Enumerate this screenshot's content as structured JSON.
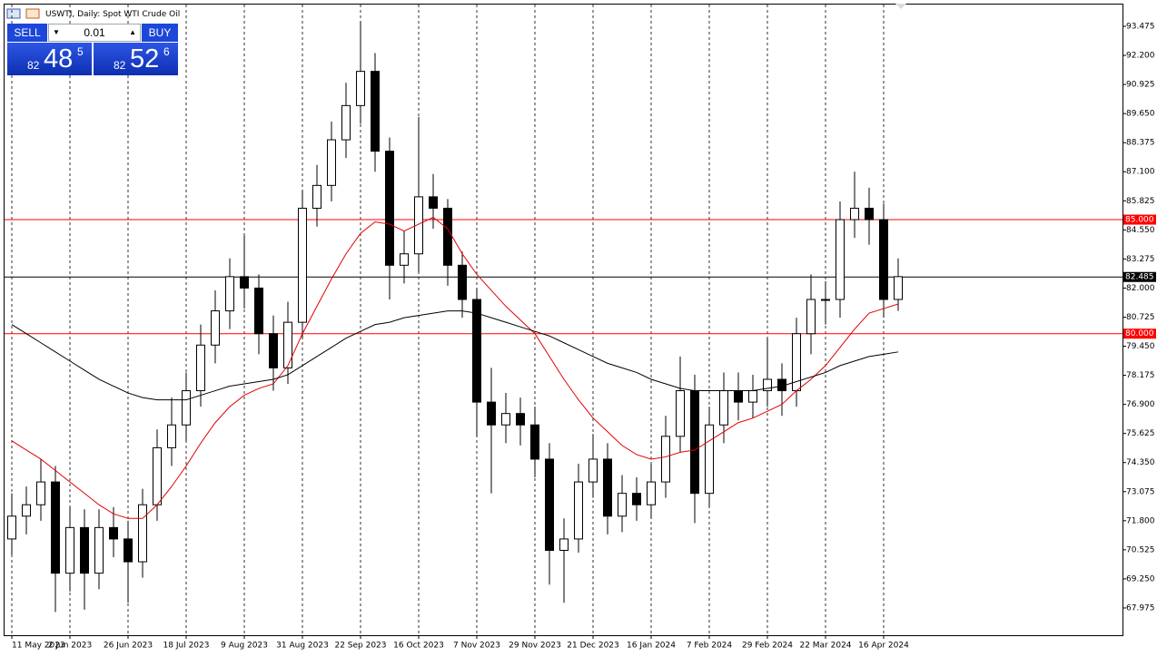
{
  "chart_data": {
    "type": "candlestick",
    "title": "USWTI, Daily:  Spot WTI Crude Oil",
    "categories": [
      "11 May 2023",
      null,
      null,
      null,
      "2 Jun 2023",
      null,
      null,
      null,
      "26 Jun 2023",
      null,
      null,
      null,
      "18 Jul 2023",
      null,
      null,
      null,
      "9 Aug 2023",
      null,
      null,
      null,
      "31 Aug 2023",
      null,
      null,
      null,
      "22 Sep 2023",
      null,
      null,
      null,
      "16 Oct 2023",
      null,
      null,
      null,
      "7 Nov 2023",
      null,
      null,
      null,
      "29 Nov 2023",
      null,
      null,
      null,
      "21 Dec 2023",
      null,
      null,
      null,
      "16 Jan 2024",
      null,
      null,
      null,
      "7 Feb 2024",
      null,
      null,
      null,
      "29 Feb 2024",
      null,
      null,
      null,
      "22 Mar 2024",
      null,
      null,
      null,
      "16 Apr 2024",
      null
    ],
    "open": [
      71.0,
      72.0,
      72.5,
      73.5,
      69.5,
      71.5,
      69.5,
      71.5,
      71.0,
      70.0,
      72.5,
      75.0,
      76.0,
      77.5,
      79.5,
      81.0,
      82.5,
      82.0,
      80.0,
      78.5,
      80.5,
      85.5,
      86.5,
      88.5,
      90.0,
      91.5,
      88.0,
      83.0,
      83.5,
      86.0,
      85.5,
      83.0,
      81.5,
      77.0,
      76.0,
      76.5,
      76.0,
      74.5,
      70.5,
      71.0,
      73.5,
      74.5,
      72.0,
      73.0,
      72.5,
      73.5,
      75.5,
      77.5,
      73.0,
      76.0,
      77.5,
      77.0,
      77.5,
      78.0,
      77.5,
      80.0,
      81.5,
      81.5,
      85.0,
      85.5,
      85.0,
      81.5
    ],
    "high": [
      73.0,
      73.3,
      74.5,
      74.2,
      72.4,
      72.3,
      72.3,
      72.4,
      71.8,
      73.2,
      75.8,
      77.2,
      78.3,
      80.4,
      81.9,
      83.3,
      84.3,
      82.6,
      80.8,
      81.4,
      86.3,
      87.4,
      89.3,
      91.0,
      93.7,
      92.3,
      88.6,
      84.5,
      89.5,
      87.0,
      85.9,
      83.6,
      82.0,
      78.5,
      77.4,
      77.2,
      76.8,
      75.2,
      71.9,
      74.3,
      75.6,
      75.2,
      73.8,
      73.7,
      74.3,
      76.4,
      79.0,
      78.2,
      76.8,
      78.3,
      78.3,
      78.2,
      79.8,
      78.7,
      80.7,
      82.6,
      82.3,
      85.8,
      87.1,
      86.4,
      85.7,
      83.3
    ],
    "low": [
      70.3,
      71.2,
      71.8,
      67.8,
      68.7,
      67.9,
      68.8,
      70.2,
      68.2,
      69.3,
      71.8,
      74.2,
      75.3,
      76.8,
      78.7,
      80.2,
      81.1,
      79.1,
      77.5,
      77.8,
      79.8,
      84.7,
      85.8,
      87.7,
      89.2,
      87.1,
      81.5,
      82.2,
      82.7,
      84.6,
      82.1,
      80.7,
      75.5,
      73.0,
      75.2,
      75.1,
      73.7,
      69.0,
      68.2,
      70.4,
      72.8,
      71.2,
      71.3,
      71.8,
      71.9,
      72.8,
      74.8,
      71.7,
      72.4,
      75.2,
      76.2,
      76.3,
      76.8,
      76.4,
      76.8,
      79.1,
      80.4,
      80.7,
      84.2,
      83.9,
      80.7,
      81.0
    ],
    "close": [
      72.0,
      72.5,
      73.5,
      69.5,
      71.5,
      69.5,
      71.5,
      71.0,
      70.0,
      72.5,
      75.0,
      76.0,
      77.5,
      79.5,
      81.0,
      82.5,
      82.0,
      80.0,
      78.5,
      80.5,
      85.5,
      86.5,
      88.5,
      90.0,
      91.5,
      88.0,
      83.0,
      83.5,
      86.0,
      85.5,
      83.0,
      81.5,
      77.0,
      76.0,
      76.5,
      76.0,
      74.5,
      70.5,
      71.0,
      73.5,
      74.5,
      72.0,
      73.0,
      72.5,
      73.5,
      75.5,
      77.5,
      73.0,
      76.0,
      77.5,
      77.0,
      77.5,
      78.0,
      77.5,
      80.0,
      81.5,
      81.5,
      85.0,
      85.5,
      85.0,
      81.5,
      82.5
    ],
    "up_color": "#ffffff",
    "down_color": "#000000",
    "outline_color": "#000000",
    "lines": [
      {
        "color": "#e00000",
        "values": [
          75.3,
          74.9,
          74.5,
          74.0,
          73.5,
          73.0,
          72.5,
          72.1,
          71.9,
          71.9,
          72.5,
          73.3,
          74.2,
          75.2,
          76.1,
          76.8,
          77.3,
          77.6,
          77.8,
          78.6,
          80.0,
          81.2,
          82.4,
          83.5,
          84.4,
          84.9,
          84.8,
          84.5,
          84.8,
          85.1,
          84.6,
          83.5,
          82.6,
          81.9,
          81.2,
          80.6,
          80.0,
          79.0,
          78.0,
          77.1,
          76.3,
          75.7,
          75.1,
          74.7,
          74.5,
          74.6,
          74.8,
          74.9,
          75.3,
          75.7,
          76.1,
          76.3,
          76.6,
          76.9,
          77.5,
          78.0,
          78.6,
          79.4,
          80.2,
          80.9,
          81.1,
          81.3
        ]
      },
      {
        "color": "#000000",
        "values": [
          80.4,
          80.0,
          79.6,
          79.2,
          78.8,
          78.4,
          78.0,
          77.7,
          77.4,
          77.2,
          77.1,
          77.1,
          77.1,
          77.3,
          77.5,
          77.7,
          77.8,
          77.9,
          78.0,
          78.2,
          78.6,
          79.0,
          79.4,
          79.8,
          80.1,
          80.4,
          80.5,
          80.7,
          80.8,
          80.9,
          81.0,
          81.0,
          80.9,
          80.7,
          80.5,
          80.3,
          80.1,
          79.9,
          79.6,
          79.3,
          79.0,
          78.7,
          78.5,
          78.3,
          78.0,
          77.8,
          77.6,
          77.5,
          77.5,
          77.5,
          77.5,
          77.5,
          77.6,
          77.7,
          77.9,
          78.1,
          78.3,
          78.6,
          78.8,
          79.0,
          79.1,
          79.2
        ]
      }
    ],
    "levels": [
      {
        "value": 85,
        "label": "85.000",
        "color": "#ff0000"
      },
      {
        "value": 80,
        "label": "80.000",
        "color": "#ff0000"
      },
      {
        "value": 82.485,
        "label": "82.485",
        "color": "#000000"
      }
    ],
    "ylim": [
      66.78,
      94.43
    ],
    "yticks": [
      93.475,
      {
        "value": 92.2,
        "label": "92.200"
      },
      90.925,
      {
        "value": 89.65,
        "label": "89.650"
      },
      88.375,
      {
        "value": 87.1,
        "label": "87.100"
      },
      85.825,
      {
        "value": 84.55,
        "label": "84.550"
      },
      83.275,
      {
        "value": 82,
        "label": "82.000"
      },
      80.725,
      {
        "value": 79.45,
        "label": "79.450"
      },
      78.175,
      {
        "value": 76.9,
        "label": "76.900"
      },
      75.625,
      {
        "value": 74.35,
        "label": "74.350"
      },
      73.075,
      {
        "value": 71.8,
        "label": "71.800"
      },
      70.525,
      {
        "value": 69.25,
        "label": "69.250"
      },
      67.975
    ],
    "grid": true
  },
  "trade_panel": {
    "sell": "SELL",
    "buy": "BUY",
    "volume": "0.01",
    "bid": {
      "big": "82",
      "main": "48",
      "small": "5"
    },
    "ask": {
      "big": "82",
      "main": "52",
      "small": "6"
    }
  }
}
